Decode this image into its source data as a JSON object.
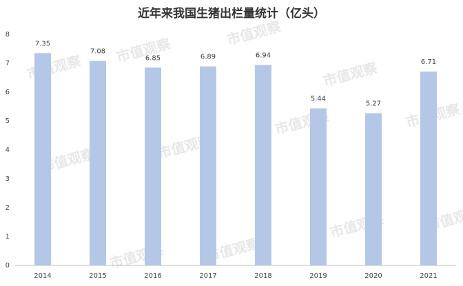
{
  "chart_data": {
    "type": "bar",
    "title": "近年来我国生猪出栏量统计（亿头）",
    "categories": [
      "2014",
      "2015",
      "2016",
      "2017",
      "2018",
      "2019",
      "2020",
      "2021"
    ],
    "values": [
      7.35,
      7.08,
      6.85,
      6.89,
      6.94,
      5.44,
      5.27,
      6.71
    ],
    "color": "#b4c7e7",
    "ylim": [
      0,
      8
    ],
    "yticks": [
      0,
      1,
      2,
      3,
      4,
      5,
      6,
      7,
      8
    ],
    "grid": false,
    "watermark": "市值观察"
  }
}
